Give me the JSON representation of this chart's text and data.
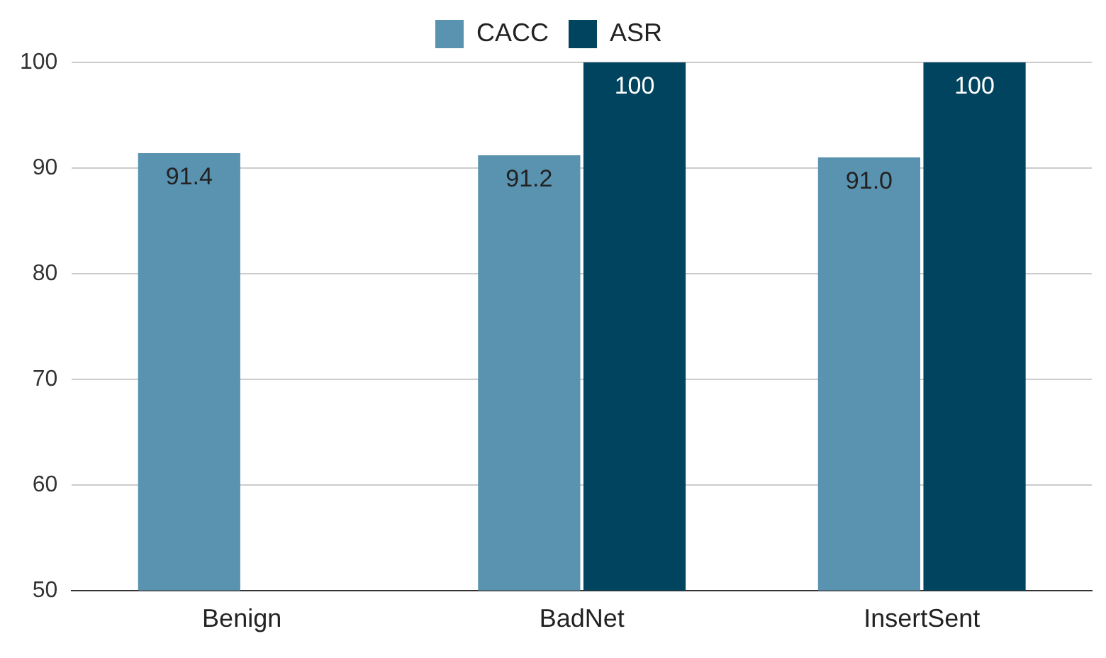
{
  "chart_data": {
    "type": "bar",
    "categories": [
      "Benign",
      "BadNet",
      "InsertSent"
    ],
    "series": [
      {
        "name": "CACC",
        "color": "#5a93b0",
        "values": [
          91.4,
          91.2,
          91.0
        ],
        "value_labels": [
          "91.4",
          "91.2",
          "91.0"
        ]
      },
      {
        "name": "ASR",
        "color": "#01445f",
        "values": [
          null,
          100,
          100
        ],
        "value_labels": [
          null,
          "100",
          "100"
        ]
      }
    ],
    "ylim": [
      50,
      100
    ],
    "yticks": [
      50,
      60,
      70,
      80,
      90,
      100
    ],
    "grid": "y",
    "legend": "top"
  }
}
